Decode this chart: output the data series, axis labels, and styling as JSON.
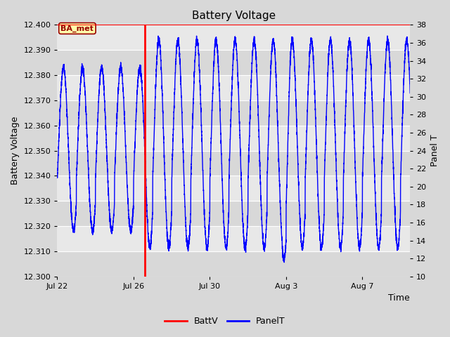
{
  "title": "Battery Voltage",
  "ylabel_left": "Battery Voltage",
  "ylabel_right": "Panel T",
  "xlabel": "Time",
  "ylim_left": [
    12.3,
    12.4
  ],
  "ylim_right": [
    10,
    38
  ],
  "yticks_left": [
    12.3,
    12.31,
    12.32,
    12.33,
    12.34,
    12.35,
    12.36,
    12.37,
    12.38,
    12.39,
    12.4
  ],
  "yticks_right": [
    10,
    12,
    14,
    16,
    18,
    20,
    22,
    24,
    26,
    28,
    30,
    32,
    34,
    36,
    38
  ],
  "bg_color": "#d8d8d8",
  "plot_bg_color_light": "#e8e8e8",
  "plot_bg_color_dark": "#d0d0d0",
  "grid_color": "#ffffff",
  "line_color_battv": "red",
  "line_color_panelt": "blue",
  "legend_battv": "BattV",
  "legend_panelt": "PanelT",
  "battv_vline_x": 4.6,
  "annotation_label": "BA_met",
  "xtick_labels": [
    "Jul 22",
    "Jul 26",
    "Jul 30",
    "Aug 3",
    "Aug 7"
  ],
  "xtick_positions": [
    0,
    4,
    8,
    12,
    16
  ],
  "n_days": 18.5
}
